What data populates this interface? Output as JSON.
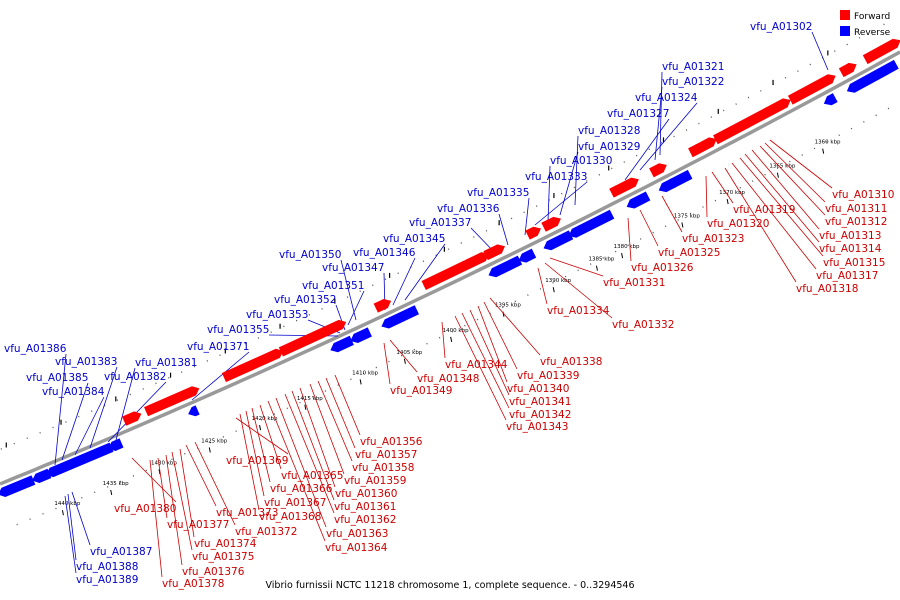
{
  "caption": "Vibrio furnissii NCTC 11218 chromosome 1, complete sequence. - 0..3294546",
  "legend": [
    {
      "label": "Forward",
      "color": "#ff0000"
    },
    {
      "label": "Reverse",
      "color": "#0000ff"
    }
  ],
  "colors": {
    "forward": "#ff0000",
    "reverse": "#0000ff",
    "forward_label": "#cc0000",
    "reverse_label": "#0000cc",
    "backbone": "#999999"
  },
  "ticks": [
    "1360 kbp",
    "1365 kbp",
    "1370 kbp",
    "1375 kbp",
    "1380 kbp",
    "1385 kbp",
    "1390 kbp",
    "1395 kbp",
    "1400 kbp",
    "1405 kbp",
    "1410 kbp",
    "1415 kbp",
    "1420 kbp",
    "1425 kbp",
    "1430 kbp",
    "1435 kbp",
    "1440 kbp"
  ],
  "reverse_genes": [
    "vfu_A01302",
    "vfu_A01321",
    "vfu_A01322",
    "vfu_A01324",
    "vfu_A01327",
    "vfu_A01328",
    "vfu_A01329",
    "vfu_A01330",
    "vfu_A01333",
    "vfu_A01335",
    "vfu_A01336",
    "vfu_A01337",
    "vfu_A01345",
    "vfu_A01346",
    "vfu_A01347",
    "vfu_A01350",
    "vfu_A01351",
    "vfu_A01352",
    "vfu_A01353",
    "vfu_A01355",
    "vfu_A01371",
    "vfu_A01381",
    "vfu_A01382",
    "vfu_A01383",
    "vfu_A01384",
    "vfu_A01385",
    "vfu_A01386",
    "vfu_A01387",
    "vfu_A01388",
    "vfu_A01389"
  ],
  "forward_genes": [
    "vfu_A01310",
    "vfu_A01311",
    "vfu_A01312",
    "vfu_A01313",
    "vfu_A01314",
    "vfu_A01315",
    "vfu_A01317",
    "vfu_A01318",
    "vfu_A01319",
    "vfu_A01320",
    "vfu_A01323",
    "vfu_A01325",
    "vfu_A01326",
    "vfu_A01331",
    "vfu_A01332",
    "vfu_A01334",
    "vfu_A01338",
    "vfu_A01339",
    "vfu_A01340",
    "vfu_A01341",
    "vfu_A01342",
    "vfu_A01343",
    "vfu_A01344",
    "vfu_A01348",
    "vfu_A01349",
    "vfu_A01356",
    "vfu_A01357",
    "vfu_A01358",
    "vfu_A01359",
    "vfu_A01360",
    "vfu_A01361",
    "vfu_A01362",
    "vfu_A01363",
    "vfu_A01364",
    "vfu_A01365",
    "vfu_A01366",
    "vfu_A01367",
    "vfu_A01368",
    "vfu_A01369",
    "vfu_A01372",
    "vfu_A01373",
    "vfu_A01374",
    "vfu_A01375",
    "vfu_A01376",
    "vfu_A01377",
    "vfu_A01378",
    "vfu_A01380"
  ]
}
